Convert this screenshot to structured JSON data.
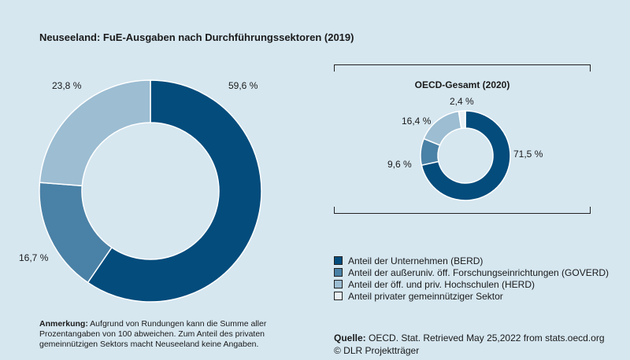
{
  "title": "Neuseeland: FuE-Ausgaben nach Durchführungssektoren (2019)",
  "oecd": {
    "title": "OECD-Gesamt (2020)"
  },
  "colors": {
    "berd": "#034c7c",
    "goverd": "#4a81a6",
    "herd": "#9cbdd2",
    "private": "#e8f0f5"
  },
  "legend": [
    {
      "label": "Anteil der Unternehmen (BERD)",
      "color": "#034c7c"
    },
    {
      "label": "Anteil der außeruniv. öff. Forschungseinrichtungen (GOVERD)",
      "color": "#4a81a6"
    },
    {
      "label": "Anteil der öff. und priv. Hochschulen (HERD)",
      "color": "#9cbdd2"
    },
    {
      "label": "Anteil privater gemeinnütziger Sektor",
      "color": "#e8f0f5"
    }
  ],
  "note": {
    "label": "Anmerkung:",
    "text": " Aufgrund von Rundungen kann die Summe aller Prozentangaben von 100 abweichen. Zum Anteil des privaten gemeinnützigen Sektors macht Neuseeland keine Angaben."
  },
  "source": {
    "label": "Quelle:",
    "text": " OECD. Stat. Retrieved May 25,2022 from stats.oecd.org",
    "copyright": "© DLR Projektträger"
  },
  "chart_data": [
    {
      "type": "pie",
      "title": "Neuseeland: FuE-Ausgaben nach Durchführungssektoren (2019)",
      "categories": [
        "BERD",
        "GOVERD",
        "HERD"
      ],
      "values": [
        59.6,
        16.7,
        23.8
      ],
      "labels": [
        "59,6 %",
        "16,7 %",
        "23,8 %"
      ],
      "colors": [
        "#034c7c",
        "#4a81a6",
        "#9cbdd2"
      ]
    },
    {
      "type": "pie",
      "title": "OECD-Gesamt (2020)",
      "categories": [
        "BERD",
        "GOVERD",
        "HERD",
        "Privat"
      ],
      "values": [
        71.5,
        9.6,
        16.4,
        2.4
      ],
      "labels": [
        "71,5 %",
        "9,6 %",
        "16,4 %",
        "2,4 %"
      ],
      "colors": [
        "#034c7c",
        "#4a81a6",
        "#9cbdd2",
        "#e8f0f5"
      ]
    }
  ]
}
